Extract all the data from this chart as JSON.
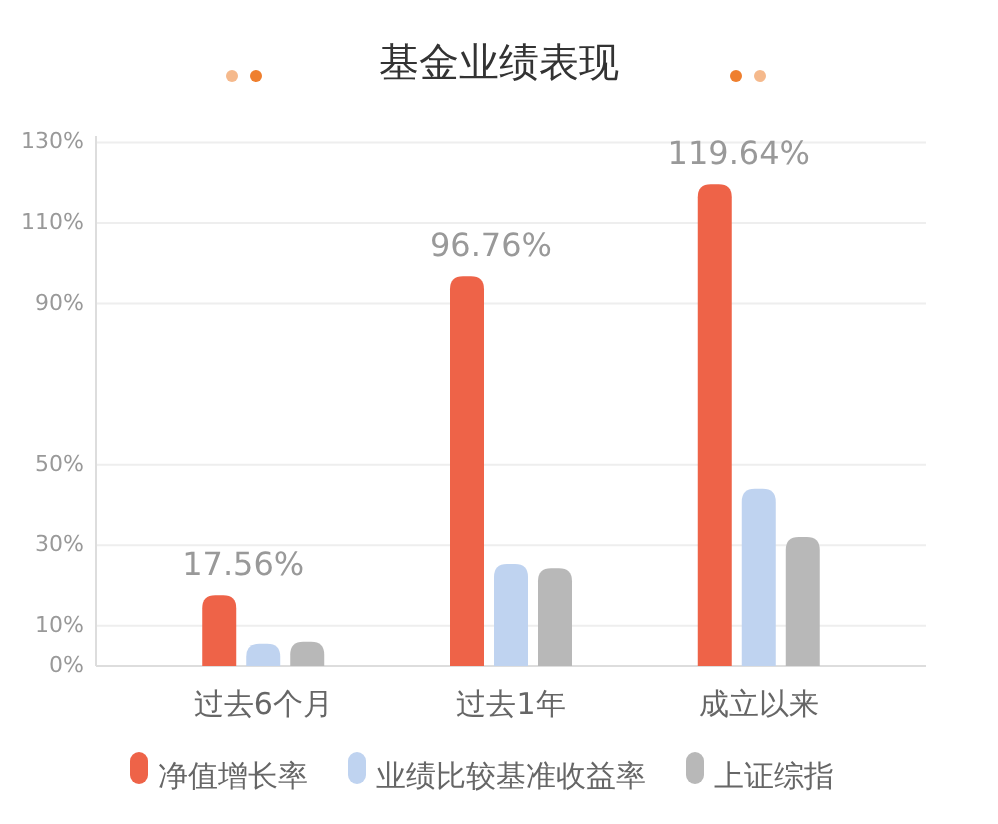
{
  "chart_data": {
    "type": "bar",
    "title": "基金业绩表现",
    "categories": [
      "过去6个月",
      "过去1年",
      "成立以来"
    ],
    "series": [
      {
        "name": "净值增长率",
        "color": "#ee6348",
        "values": [
          17.56,
          96.76,
          119.64
        ],
        "value_labels": [
          "17.56%",
          "96.76%",
          "119.64%"
        ]
      },
      {
        "name": "业绩比较基准收益率",
        "color": "#bfd3f0",
        "values": [
          5.5,
          25.3,
          44
        ]
      },
      {
        "name": "上证综指",
        "color": "#b8b8b8",
        "values": [
          6,
          24.3,
          32
        ]
      }
    ],
    "ylim": [
      0,
      131.6
    ],
    "yticks": [
      {
        "value": 0,
        "label": "0%"
      },
      {
        "value": 10,
        "label": "10%"
      },
      {
        "value": 30,
        "label": "30%"
      },
      {
        "value": 50,
        "label": "50%"
      },
      {
        "value": 90,
        "label": "90%"
      },
      {
        "value": 110,
        "label": "110%"
      },
      {
        "value": 130,
        "label": "130%"
      }
    ],
    "grid": "y",
    "legend": "bottom"
  }
}
